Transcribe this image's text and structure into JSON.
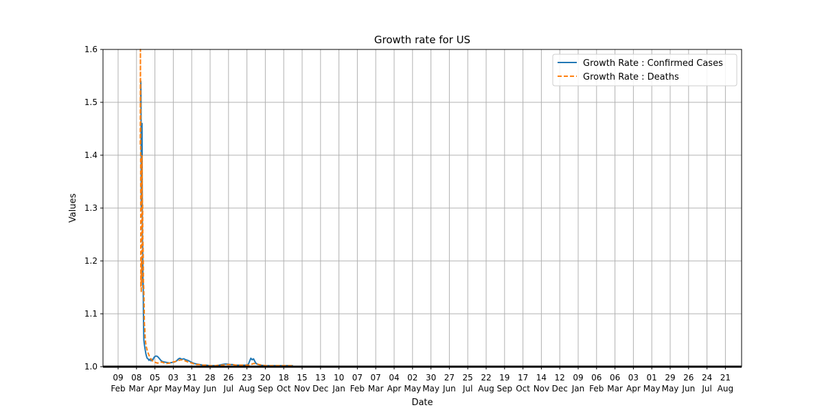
{
  "chart_data": {
    "type": "line",
    "title": "Growth rate for US",
    "xlabel": "Date",
    "ylabel": "Values",
    "ylim": [
      1.0,
      1.6
    ],
    "y_ticks": [
      "1.0",
      "1.1",
      "1.2",
      "1.3",
      "1.4",
      "1.5",
      "1.6"
    ],
    "x_ticks": [
      {
        "day": "09",
        "month": "Feb"
      },
      {
        "day": "08",
        "month": "Mar"
      },
      {
        "day": "05",
        "month": "Apr"
      },
      {
        "day": "03",
        "month": "May"
      },
      {
        "day": "31",
        "month": "May"
      },
      {
        "day": "28",
        "month": "Jun"
      },
      {
        "day": "26",
        "month": "Jul"
      },
      {
        "day": "23",
        "month": "Aug"
      },
      {
        "day": "20",
        "month": "Sep"
      },
      {
        "day": "18",
        "month": "Oct"
      },
      {
        "day": "15",
        "month": "Nov"
      },
      {
        "day": "13",
        "month": "Dec"
      },
      {
        "day": "10",
        "month": "Jan"
      },
      {
        "day": "07",
        "month": "Feb"
      },
      {
        "day": "07",
        "month": "Mar"
      },
      {
        "day": "04",
        "month": "Apr"
      },
      {
        "day": "02",
        "month": "May"
      },
      {
        "day": "30",
        "month": "May"
      },
      {
        "day": "27",
        "month": "Jun"
      },
      {
        "day": "25",
        "month": "Jul"
      },
      {
        "day": "22",
        "month": "Aug"
      },
      {
        "day": "19",
        "month": "Sep"
      },
      {
        "day": "17",
        "month": "Oct"
      },
      {
        "day": "14",
        "month": "Nov"
      },
      {
        "day": "12",
        "month": "Dec"
      },
      {
        "day": "09",
        "month": "Jan"
      },
      {
        "day": "06",
        "month": "Feb"
      },
      {
        "day": "06",
        "month": "Mar"
      },
      {
        "day": "03",
        "month": "Apr"
      },
      {
        "day": "01",
        "month": "May"
      },
      {
        "day": "29",
        "month": "May"
      },
      {
        "day": "26",
        "month": "Jun"
      },
      {
        "day": "24",
        "month": "Jul"
      },
      {
        "day": "21",
        "month": "Aug"
      }
    ],
    "grid": true,
    "legend_position": "top-right",
    "series": [
      {
        "name": "Growth Rate : Confirmed Cases",
        "color": "#1f77b4",
        "style": "solid",
        "points": [
          [
            0.0,
            1.49
          ],
          [
            0.3,
            1.5
          ],
          [
            0.6,
            1.54
          ],
          [
            0.9,
            1.5
          ],
          [
            1.2,
            1.3
          ],
          [
            1.5,
            1.41
          ],
          [
            1.8,
            1.3
          ],
          [
            2.1,
            1.42
          ],
          [
            2.4,
            1.46
          ],
          [
            2.7,
            1.36
          ],
          [
            3.0,
            1.24
          ],
          [
            3.3,
            1.23
          ],
          [
            3.6,
            1.18
          ],
          [
            3.8,
            1.15
          ],
          [
            4.1,
            1.16
          ],
          [
            4.4,
            1.11
          ],
          [
            4.8,
            1.08
          ],
          [
            5.2,
            1.05
          ],
          [
            5.7,
            1.045
          ],
          [
            6.2,
            1.04
          ],
          [
            6.8,
            1.035
          ],
          [
            7.5,
            1.03
          ],
          [
            8.3,
            1.024
          ],
          [
            9.2,
            1.02
          ],
          [
            10.2,
            1.016
          ],
          [
            11.5,
            1.015
          ],
          [
            13,
            1.012
          ],
          [
            14.5,
            1.014
          ],
          [
            16,
            1.011
          ],
          [
            17.5,
            1.014
          ],
          [
            19,
            1.013
          ],
          [
            21,
            1.018
          ],
          [
            23,
            1.02
          ],
          [
            25,
            1.02
          ],
          [
            27,
            1.018
          ],
          [
            29,
            1.015
          ],
          [
            31,
            1.012
          ],
          [
            33,
            1.01
          ],
          [
            36,
            1.009
          ],
          [
            40,
            1.008
          ],
          [
            44,
            1.007
          ],
          [
            48,
            1.008
          ],
          [
            52,
            1.009
          ],
          [
            55,
            1.011
          ],
          [
            58,
            1.015
          ],
          [
            60,
            1.016
          ],
          [
            63,
            1.014
          ],
          [
            66,
            1.015
          ],
          [
            69,
            1.013
          ],
          [
            72,
            1.012
          ],
          [
            75,
            1.01
          ],
          [
            78,
            1.008
          ],
          [
            82,
            1.006
          ],
          [
            86,
            1.005
          ],
          [
            90,
            1.004
          ],
          [
            95,
            1.003
          ],
          [
            100,
            1.003
          ],
          [
            105,
            1.002
          ],
          [
            110,
            1.002
          ],
          [
            115,
            1.002
          ],
          [
            120,
            1.003
          ],
          [
            124,
            1.004
          ],
          [
            128,
            1.005
          ],
          [
            132,
            1.005
          ],
          [
            136,
            1.004
          ],
          [
            140,
            1.004
          ],
          [
            145,
            1.003
          ],
          [
            150,
            1.003
          ],
          [
            155,
            1.003
          ],
          [
            160,
            1.003
          ],
          [
            164,
            1.004
          ],
          [
            166,
            1.01
          ],
          [
            168,
            1.016
          ],
          [
            170,
            1.013
          ],
          [
            172,
            1.015
          ],
          [
            174,
            1.01
          ],
          [
            176,
            1.006
          ],
          [
            179,
            1.004
          ],
          [
            183,
            1.003
          ],
          [
            188,
            1.002
          ],
          [
            195,
            1.002
          ],
          [
            202,
            1.002
          ],
          [
            210,
            1.002
          ],
          [
            218,
            1.002
          ],
          [
            225,
            1.002
          ],
          [
            232,
            1.002
          ]
        ]
      },
      {
        "name": "Growth Rate : Deaths",
        "color": "#ff7f0e",
        "style": "dashed",
        "points": [
          [
            -0.3,
            1.42
          ],
          [
            0.0,
            1.6
          ],
          [
            0.3,
            1.45
          ],
          [
            0.6,
            1.15
          ],
          [
            0.9,
            1.18
          ],
          [
            1.2,
            1.14
          ],
          [
            1.5,
            1.2
          ],
          [
            1.8,
            1.16
          ],
          [
            2.1,
            1.26
          ],
          [
            2.4,
            1.4
          ],
          [
            2.7,
            1.33
          ],
          [
            3.0,
            1.31
          ],
          [
            3.3,
            1.31
          ],
          [
            3.6,
            1.24
          ],
          [
            3.9,
            1.23
          ],
          [
            4.2,
            1.21
          ],
          [
            4.6,
            1.16
          ],
          [
            5.0,
            1.15
          ],
          [
            5.5,
            1.12
          ],
          [
            6.0,
            1.08
          ],
          [
            6.5,
            1.075
          ],
          [
            7.0,
            1.06
          ],
          [
            7.5,
            1.05
          ],
          [
            8.5,
            1.04
          ],
          [
            9.5,
            1.035
          ],
          [
            10.5,
            1.03
          ],
          [
            12,
            1.025
          ],
          [
            13.5,
            1.02
          ],
          [
            15,
            1.016
          ],
          [
            17,
            1.013
          ],
          [
            19,
            1.01
          ],
          [
            21,
            1.008
          ],
          [
            23,
            1.008
          ],
          [
            25,
            1.007
          ],
          [
            28,
            1.007
          ],
          [
            32,
            1.009
          ],
          [
            36,
            1.007
          ],
          [
            40,
            1.006
          ],
          [
            45,
            1.007
          ],
          [
            50,
            1.009
          ],
          [
            54,
            1.01
          ],
          [
            58,
            1.012
          ],
          [
            62,
            1.013
          ],
          [
            66,
            1.012
          ],
          [
            70,
            1.01
          ],
          [
            74,
            1.008
          ],
          [
            78,
            1.007
          ],
          [
            82,
            1.005
          ],
          [
            86,
            1.004
          ],
          [
            90,
            1.004
          ],
          [
            95,
            1.003
          ],
          [
            100,
            1.003
          ],
          [
            105,
            1.002
          ],
          [
            110,
            1.002
          ],
          [
            115,
            1.002
          ],
          [
            120,
            1.003
          ],
          [
            125,
            1.003
          ],
          [
            130,
            1.004
          ],
          [
            135,
            1.004
          ],
          [
            140,
            1.004
          ],
          [
            145,
            1.003
          ],
          [
            150,
            1.003
          ],
          [
            155,
            1.003
          ],
          [
            160,
            1.003
          ],
          [
            165,
            1.003
          ],
          [
            168,
            1.004
          ],
          [
            172,
            1.006
          ],
          [
            176,
            1.006
          ],
          [
            180,
            1.004
          ],
          [
            185,
            1.003
          ],
          [
            190,
            1.002
          ],
          [
            198,
            1.002
          ],
          [
            206,
            1.002
          ],
          [
            214,
            1.002
          ],
          [
            222,
            1.002
          ],
          [
            232,
            1.002
          ]
        ]
      }
    ]
  }
}
